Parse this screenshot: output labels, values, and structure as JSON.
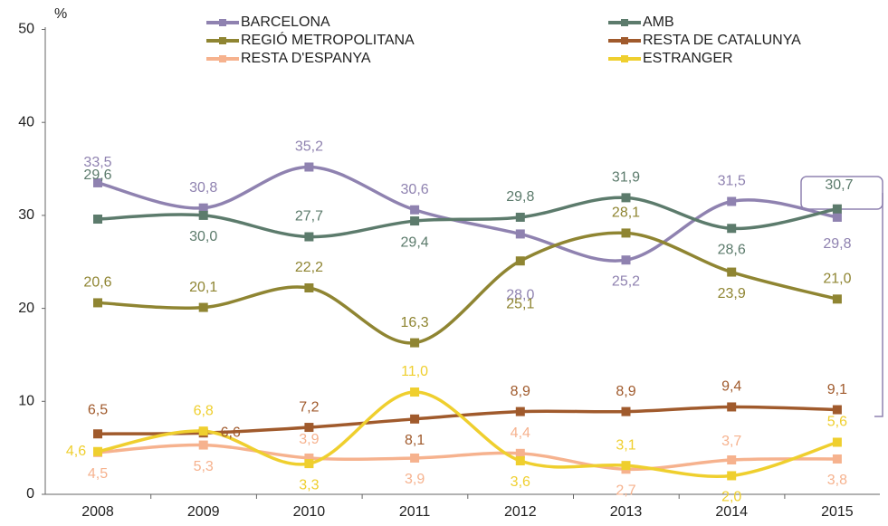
{
  "chart_data": {
    "type": "line",
    "y_unit_label": "%",
    "categories": [
      "2008",
      "2009",
      "2010",
      "2011",
      "2012",
      "2013",
      "2014",
      "2015"
    ],
    "ylim": [
      0,
      50
    ],
    "yticks": [
      0,
      10,
      20,
      30,
      40,
      50
    ],
    "series": [
      {
        "name": "BARCELONA",
        "color": "#8f82b0",
        "values": [
          33.5,
          30.8,
          35.2,
          30.6,
          28.0,
          25.2,
          31.5,
          29.8
        ],
        "value_labels": [
          "33,5",
          "30,8",
          "35,2",
          "30,6",
          "28,0",
          "25,2",
          "31,5",
          "29,8"
        ]
      },
      {
        "name": "AMB",
        "color": "#5c7b6c",
        "values": [
          29.6,
          30.0,
          27.7,
          29.4,
          29.8,
          31.9,
          28.6,
          30.7
        ],
        "value_labels": [
          "29,6",
          "30,0",
          "27,7",
          "29,4",
          "29,8",
          "31,9",
          "28,6",
          "30,7"
        ]
      },
      {
        "name": "REGIÓ METROPOLITANA",
        "color": "#8f8532",
        "values": [
          20.6,
          20.1,
          22.2,
          16.3,
          25.1,
          28.1,
          23.9,
          21.0
        ],
        "value_labels": [
          "20,6",
          "20,1",
          "22,2",
          "16,3",
          "25,1",
          "28,1",
          "23,9",
          "21,0"
        ]
      },
      {
        "name": "RESTA DE CATALUNYA",
        "color": "#a05a2c",
        "values": [
          6.5,
          6.6,
          7.2,
          8.1,
          8.9,
          8.9,
          9.4,
          9.1
        ],
        "value_labels": [
          "6,5",
          "6,6",
          "7,2",
          "8,1",
          "8,9",
          "8,9",
          "9,4",
          "9,1"
        ]
      },
      {
        "name": "RESTA D'ESPANYA",
        "color": "#f6b28e",
        "values": [
          4.5,
          5.3,
          3.9,
          3.9,
          4.4,
          2.7,
          3.7,
          3.8
        ],
        "value_labels": [
          "4,5",
          "5,3",
          "3,9",
          "3,9",
          "4,4",
          "2,7",
          "3,7",
          "3,8"
        ]
      },
      {
        "name": "ESTRANGER",
        "color": "#efcf2e",
        "values": [
          4.6,
          6.8,
          3.3,
          11.0,
          3.6,
          3.1,
          2.0,
          5.6
        ],
        "value_labels": [
          "4,6",
          "6,8",
          "3,3",
          "11,0",
          "3,6",
          "3,1",
          "2,0",
          "5,6"
        ]
      }
    ]
  }
}
